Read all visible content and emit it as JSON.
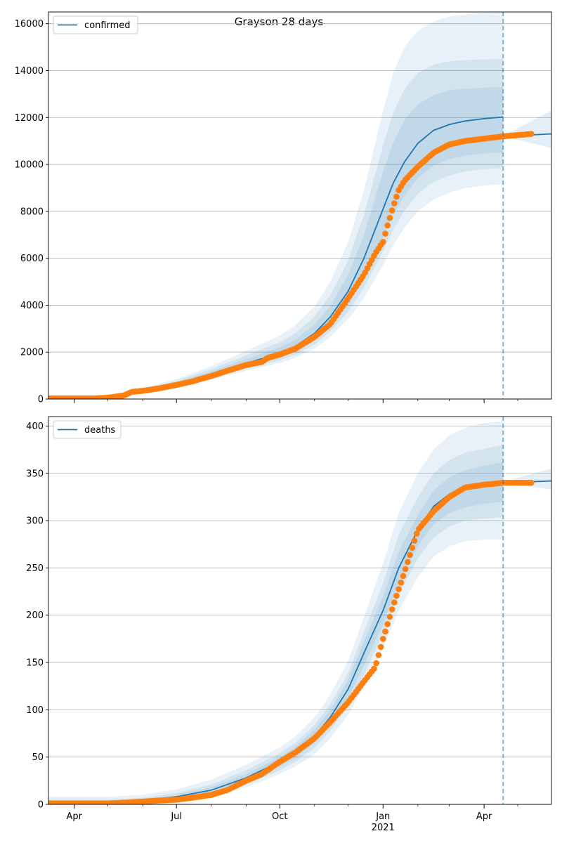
{
  "title": "Grayson 28 days",
  "colors": {
    "model": "#1f77b4",
    "observed": "#ff7f0e",
    "grid": "#b0b0b0",
    "band": "#1f77b4"
  },
  "chart_data": [
    {
      "type": "line",
      "legend": "confirmed",
      "legend_position": "top-left",
      "grid": "y",
      "x_range": [
        "2020-03-09",
        "2021-05-31"
      ],
      "ylim": [
        0,
        16500
      ],
      "yticks": [
        0,
        2000,
        4000,
        6000,
        8000,
        10000,
        12000,
        14000,
        16000
      ],
      "xticks": [
        {
          "date": "2020-04-01",
          "label": "Apr"
        },
        {
          "date": "2020-07-01",
          "label": "Jul"
        },
        {
          "date": "2020-10-01",
          "label": "Oct"
        },
        {
          "date": "2021-01-01",
          "label": "Jan",
          "sublabel": "2021"
        },
        {
          "date": "2021-04-01",
          "label": "Apr"
        }
      ],
      "vline": "2021-04-18",
      "model": {
        "x": [
          "2020-03-09",
          "2020-04-01",
          "2020-05-01",
          "2020-06-01",
          "2020-07-01",
          "2020-08-01",
          "2020-09-01",
          "2020-10-01",
          "2020-10-15",
          "2020-11-01",
          "2020-11-15",
          "2020-12-01",
          "2020-12-15",
          "2021-01-01",
          "2021-01-10",
          "2021-01-20",
          "2021-02-01",
          "2021-02-15",
          "2021-03-01",
          "2021-03-15",
          "2021-04-01",
          "2021-04-18"
        ],
        "y": [
          0,
          5,
          80,
          350,
          640,
          1050,
          1520,
          1950,
          2250,
          2800,
          3500,
          4600,
          6000,
          8100,
          9200,
          10100,
          10900,
          11450,
          11700,
          11850,
          11950,
          12020
        ]
      },
      "bands": [
        {
          "lower": [
            0,
            5,
            60,
            270,
            500,
            830,
            1200,
            1540,
            1760,
            2150,
            2650,
            3400,
            4300,
            5700,
            6550,
            7300,
            8000,
            8500,
            8800,
            8980,
            9100,
            9150
          ],
          "upper": [
            0,
            5,
            110,
            460,
            850,
            1400,
            2050,
            2700,
            3150,
            3950,
            5000,
            6700,
            8900,
            12300,
            13900,
            15000,
            15700,
            16100,
            16300,
            16400,
            16450,
            16500
          ]
        },
        {
          "lower": [
            0,
            5,
            65,
            290,
            540,
            890,
            1290,
            1650,
            1890,
            2330,
            2880,
            3720,
            4750,
            6300,
            7220,
            8020,
            8750,
            9250,
            9530,
            9700,
            9800,
            9850
          ],
          "upper": [
            0,
            5,
            100,
            420,
            780,
            1280,
            1860,
            2420,
            2810,
            3520,
            4420,
            5920,
            7850,
            10800,
            12200,
            13200,
            13900,
            14250,
            14400,
            14450,
            14480,
            14500
          ]
        },
        {
          "lower": [
            0,
            5,
            70,
            310,
            570,
            940,
            1360,
            1750,
            2010,
            2480,
            3080,
            4000,
            5200,
            6900,
            7850,
            8680,
            9420,
            9950,
            10220,
            10380,
            10470,
            10500
          ],
          "upper": [
            0,
            5,
            92,
            390,
            720,
            1180,
            1710,
            2200,
            2540,
            3170,
            3970,
            5300,
            7000,
            9700,
            10900,
            11900,
            12550,
            12950,
            13150,
            13230,
            13270,
            13300
          ]
        }
      ],
      "ext": {
        "x": [
          "2021-04-18",
          "2021-05-31"
        ],
        "y": [
          11200,
          11300
        ],
        "lower": [
          11200,
          10700
        ],
        "upper": [
          11220,
          12300
        ]
      },
      "observed": {
        "x": [
          "2020-03-09",
          "2020-04-01",
          "2020-04-20",
          "2020-05-01",
          "2020-05-15",
          "2020-05-22",
          "2020-06-01",
          "2020-06-15",
          "2020-07-01",
          "2020-07-15",
          "2020-08-01",
          "2020-08-15",
          "2020-09-01",
          "2020-09-15",
          "2020-09-20",
          "2020-10-01",
          "2020-10-15",
          "2020-11-01",
          "2020-11-15",
          "2020-12-01",
          "2020-12-15",
          "2020-12-25",
          "2021-01-01",
          "2021-01-05",
          "2021-01-10",
          "2021-01-15",
          "2021-01-20",
          "2021-02-01",
          "2021-02-15",
          "2021-03-01",
          "2021-03-15",
          "2021-04-01",
          "2021-04-18",
          "2021-05-01",
          "2021-05-13"
        ],
        "y": [
          30,
          30,
          30,
          60,
          150,
          300,
          350,
          450,
          600,
          750,
          980,
          1200,
          1450,
          1580,
          1750,
          1900,
          2150,
          2650,
          3200,
          4300,
          5300,
          6200,
          6700,
          7400,
          8200,
          8900,
          9300,
          9900,
          10500,
          10850,
          11000,
          11100,
          11200,
          11250,
          11300
        ]
      }
    },
    {
      "type": "line",
      "legend": "deaths",
      "legend_position": "top-left",
      "grid": "y",
      "x_range": [
        "2020-03-09",
        "2021-05-31"
      ],
      "ylim": [
        0,
        410
      ],
      "yticks": [
        0,
        50,
        100,
        150,
        200,
        250,
        300,
        350,
        400
      ],
      "xticks": [
        {
          "date": "2020-04-01",
          "label": "Apr"
        },
        {
          "date": "2020-07-01",
          "label": "Jul"
        },
        {
          "date": "2020-10-01",
          "label": "Oct"
        },
        {
          "date": "2021-01-01",
          "label": "Jan",
          "sublabel": "2021"
        },
        {
          "date": "2021-04-01",
          "label": "Apr"
        }
      ],
      "vline": "2021-04-18",
      "model": {
        "x": [
          "2020-03-09",
          "2020-04-01",
          "2020-05-01",
          "2020-06-01",
          "2020-07-01",
          "2020-08-01",
          "2020-09-01",
          "2020-10-01",
          "2020-10-15",
          "2020-11-01",
          "2020-11-15",
          "2020-12-01",
          "2020-12-15",
          "2021-01-01",
          "2021-01-15",
          "2021-02-01",
          "2021-02-15",
          "2021-03-01",
          "2021-03-15",
          "2021-04-01",
          "2021-04-18"
        ],
        "y": [
          1,
          1,
          2,
          4,
          8,
          15,
          28,
          45,
          55,
          72,
          92,
          122,
          160,
          205,
          250,
          290,
          315,
          328,
          335,
          338,
          340
        ]
      },
      "bands": [
        {
          "lower": [
            0,
            0,
            1,
            2,
            4,
            9,
            18,
            32,
            40,
            53,
            70,
            95,
            125,
            165,
            205,
            240,
            262,
            273,
            278,
            280,
            280
          ],
          "upper": [
            8,
            8,
            8,
            10,
            16,
            26,
            42,
            60,
            72,
            92,
            116,
            152,
            198,
            255,
            308,
            350,
            375,
            390,
            398,
            403,
            405
          ]
        },
        {
          "lower": [
            0,
            0,
            1,
            3,
            5,
            11,
            21,
            36,
            45,
            60,
            78,
            104,
            137,
            180,
            222,
            260,
            282,
            294,
            300,
            302,
            304
          ],
          "upper": [
            5,
            5,
            5,
            7,
            12,
            21,
            36,
            54,
            65,
            84,
            106,
            139,
            182,
            234,
            285,
            325,
            350,
            364,
            372,
            376,
            380
          ]
        },
        {
          "lower": [
            0,
            0,
            1,
            3,
            6,
            12,
            24,
            40,
            49,
            65,
            84,
            112,
            147,
            190,
            235,
            273,
            296,
            308,
            314,
            318,
            320
          ],
          "upper": [
            3,
            3,
            3,
            5,
            10,
            18,
            32,
            50,
            61,
            79,
            100,
            132,
            172,
            220,
            267,
            306,
            332,
            346,
            353,
            358,
            362
          ]
        }
      ],
      "ext": {
        "x": [
          "2021-04-18",
          "2021-05-31"
        ],
        "y": [
          340,
          342
        ],
        "lower": [
          340,
          333
        ],
        "upper": [
          341,
          355
        ]
      },
      "observed": {
        "x": [
          "2020-03-09",
          "2020-05-01",
          "2020-05-20",
          "2020-06-01",
          "2020-06-15",
          "2020-07-01",
          "2020-07-15",
          "2020-08-01",
          "2020-08-15",
          "2020-09-01",
          "2020-09-15",
          "2020-10-01",
          "2020-10-15",
          "2020-11-01",
          "2020-11-15",
          "2020-12-01",
          "2020-12-15",
          "2020-12-25",
          "2021-01-01",
          "2021-01-10",
          "2021-01-20",
          "2021-02-01",
          "2021-02-15",
          "2021-03-01",
          "2021-03-15",
          "2021-04-01",
          "2021-04-18",
          "2021-05-13"
        ],
        "y": [
          1,
          1,
          2,
          3,
          4,
          5,
          7,
          10,
          15,
          25,
          32,
          45,
          55,
          70,
          87,
          108,
          130,
          145,
          175,
          210,
          245,
          290,
          310,
          325,
          335,
          338,
          340,
          340
        ]
      }
    }
  ]
}
